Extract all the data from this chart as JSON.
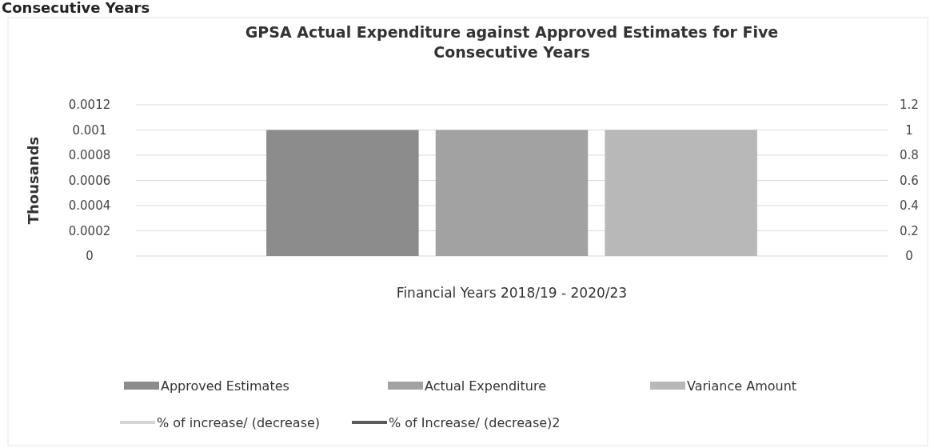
{
  "chart_data": {
    "type": "bar",
    "title": "GPSA Actual Expenditure against Approved Estimates for Five Consecutive Years",
    "xlabel": "Financial Years 2018/19 - 2020/23",
    "ylabel": "Thousands",
    "annotations": [
      "Consecutive Years"
    ],
    "categories": [
      null
    ],
    "series": [
      {
        "name": "Approved Estimates",
        "color": "#8c8c8c",
        "values": [
          0.001
        ]
      },
      {
        "name": "Actual Expenditure",
        "color": "#a2a2a2",
        "values": [
          0.001
        ]
      },
      {
        "name": "Variance Amount",
        "color": "#b8b8b8",
        "values": [
          0.001
        ]
      },
      {
        "name": "% of increase/ (decrease)",
        "type": "line",
        "color": "#d4d4d4",
        "values": [
          null
        ]
      },
      {
        "name": "% of Increase/ (decrease)2",
        "type": "line",
        "color": "#5a5a5a",
        "values": [
          null
        ]
      }
    ],
    "ylim": [
      0,
      0.0012
    ],
    "yticks": [
      0,
      0.0002,
      0.0004,
      0.0006,
      0.0008,
      0.001,
      0.0012
    ],
    "y2lim": [
      0,
      1.2
    ],
    "y2ticks": [
      0,
      0.2,
      0.4,
      0.6,
      0.8,
      1,
      1.2
    ],
    "grid": "y",
    "legend": "bottom"
  }
}
